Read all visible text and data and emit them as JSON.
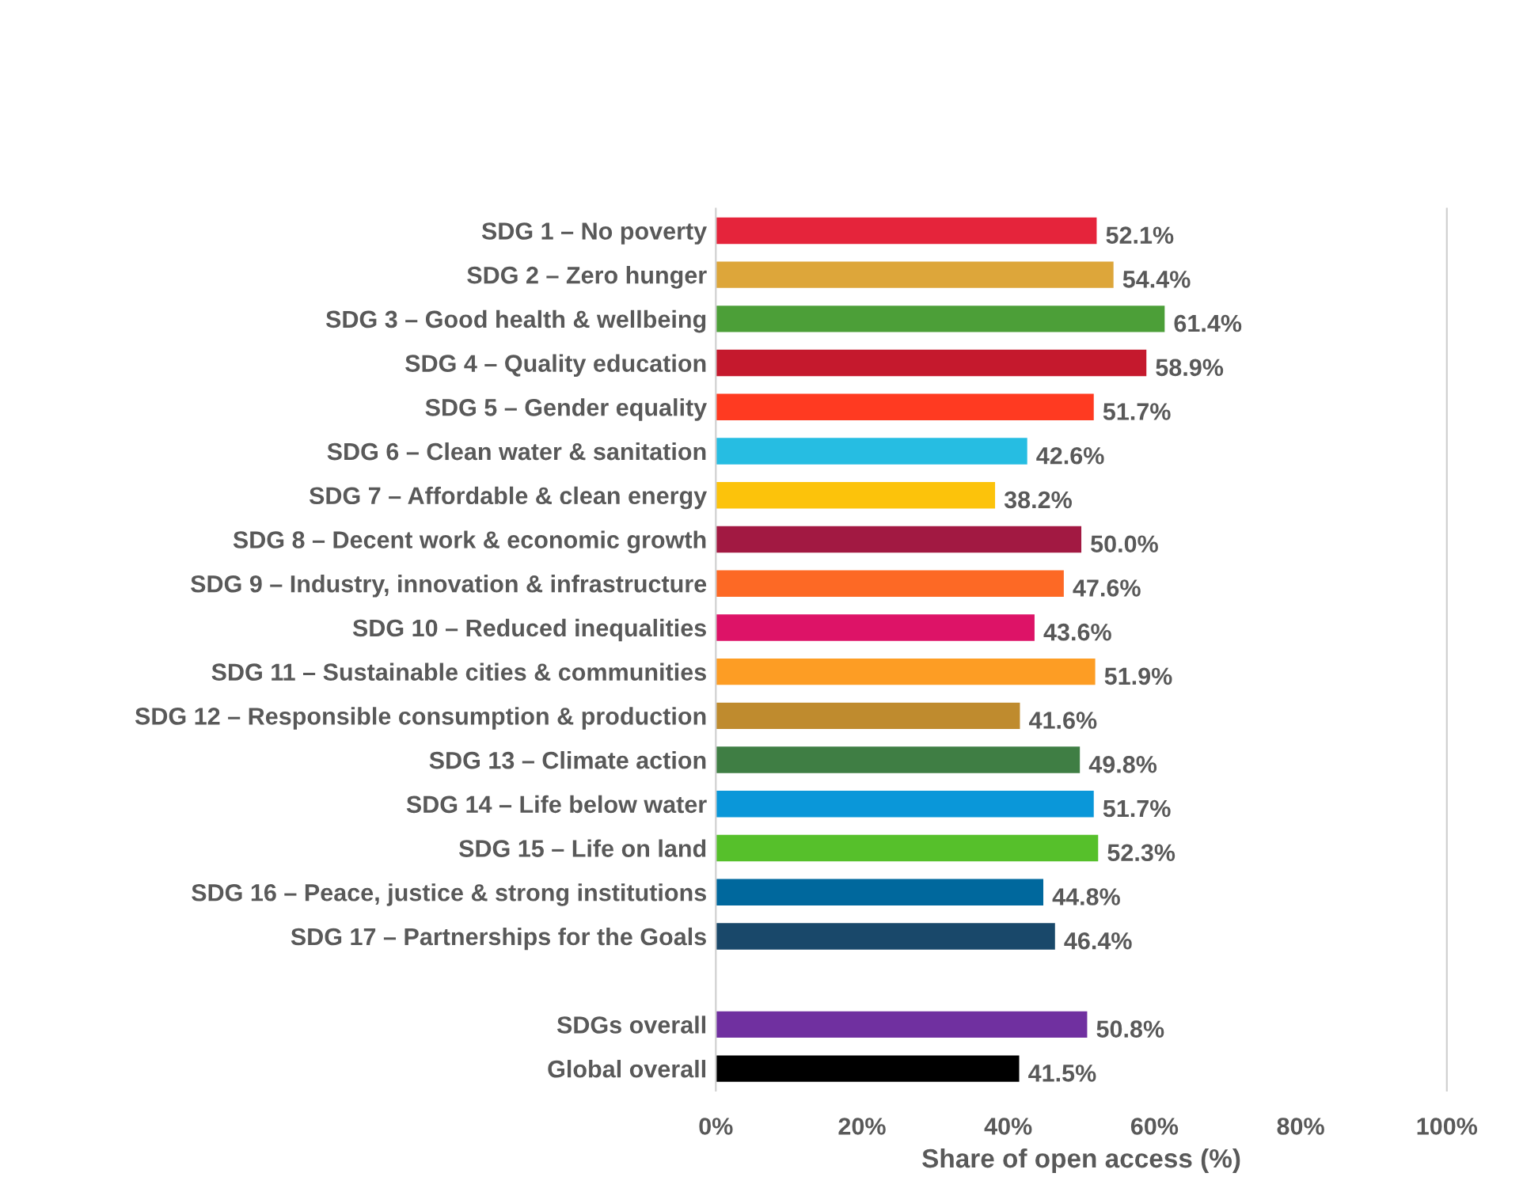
{
  "chart_data": {
    "type": "bar",
    "orientation": "horizontal",
    "xlabel": "Share of open access (%)",
    "categories": [
      "SDG 1 – No poverty",
      "SDG 2 – Zero hunger",
      "SDG 3 – Good health & wellbeing",
      "SDG 4 – Quality education",
      "SDG 5 – Gender equality",
      "SDG 6 – Clean water & sanitation",
      "SDG 7 – Affordable & clean energy",
      "SDG 8 – Decent work & economic growth",
      "SDG 9 – Industry, innovation & infrastructure",
      "SDG 10 – Reduced inequalities",
      "SDG 11 – Sustainable cities & communities",
      "SDG 12 – Responsible consumption & production",
      "SDG 13 – Climate action",
      "SDG 14 – Life below water",
      "SDG 15 – Life on land",
      "SDG 16 – Peace, justice & strong institutions",
      "SDG 17 – Partnerships for the Goals",
      null,
      "SDGs overall",
      "Global overall"
    ],
    "values": [
      52.1,
      54.4,
      61.4,
      58.9,
      51.7,
      42.6,
      38.2,
      50.0,
      47.6,
      43.6,
      51.9,
      41.6,
      49.8,
      51.7,
      52.3,
      44.8,
      46.4,
      null,
      50.8,
      41.5
    ],
    "value_labels": [
      "52.1%",
      "54.4%",
      "61.4%",
      "58.9%",
      "51.7%",
      "42.6%",
      "38.2%",
      "50.0%",
      "47.6%",
      "43.6%",
      "51.9%",
      "41.6%",
      "49.8%",
      "51.7%",
      "52.3%",
      "44.8%",
      "46.4%",
      null,
      "50.8%",
      "41.5%"
    ],
    "colors": [
      "#e5243b",
      "#dda63a",
      "#4c9f38",
      "#c5192d",
      "#ff3a21",
      "#26bde2",
      "#fcc30b",
      "#a21942",
      "#fd6925",
      "#dd1367",
      "#fd9d24",
      "#bf8b2e",
      "#3f7e44",
      "#0a97d9",
      "#56c02b",
      "#00689d",
      "#19486a",
      null,
      "#7030a0",
      "#000000"
    ],
    "xlim": [
      0,
      100
    ],
    "xticks": [
      {
        "value": 0,
        "label": "0%"
      },
      {
        "value": 20,
        "label": "20%"
      },
      {
        "value": 40,
        "label": "40%"
      },
      {
        "value": 60,
        "label": "60%"
      },
      {
        "value": 80,
        "label": "80%"
      },
      {
        "value": 100,
        "label": "100%"
      }
    ],
    "grid": false
  }
}
